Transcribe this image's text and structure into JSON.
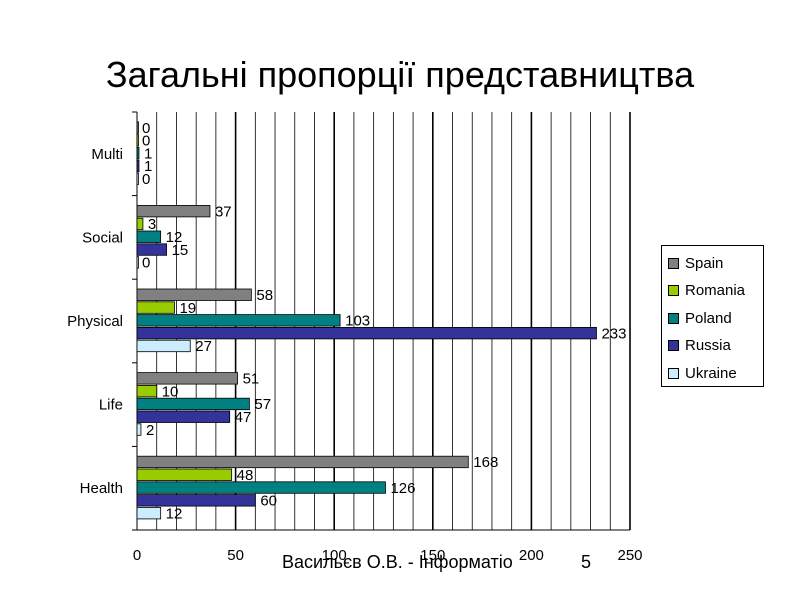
{
  "title": "Загальні пропорції представництва",
  "footer": "Васильєв О.В. - Інформатіо",
  "page_number": "5",
  "chart_data": {
    "type": "bar",
    "orientation": "horizontal",
    "categories": [
      "Multi",
      "Social",
      "Physical",
      "Life",
      "Health"
    ],
    "series": [
      {
        "name": "Spain",
        "color": "#808080",
        "values": [
          0,
          37,
          58,
          51,
          168
        ]
      },
      {
        "name": "Romania",
        "color": "#99cc00",
        "values": [
          0,
          3,
          19,
          10,
          48
        ]
      },
      {
        "name": "Poland",
        "color": "#008080",
        "values": [
          1,
          12,
          103,
          57,
          126
        ]
      },
      {
        "name": "Russia",
        "color": "#333399",
        "values": [
          1,
          15,
          233,
          47,
          60
        ]
      },
      {
        "name": "Ukraine",
        "color": "#ccecff",
        "values": [
          0,
          0,
          27,
          2,
          12
        ]
      }
    ],
    "xlim": [
      0,
      250
    ],
    "xticks": [
      "0",
      "50",
      "100",
      "150",
      "200",
      "250"
    ],
    "gridlines": true,
    "legend": "right"
  }
}
